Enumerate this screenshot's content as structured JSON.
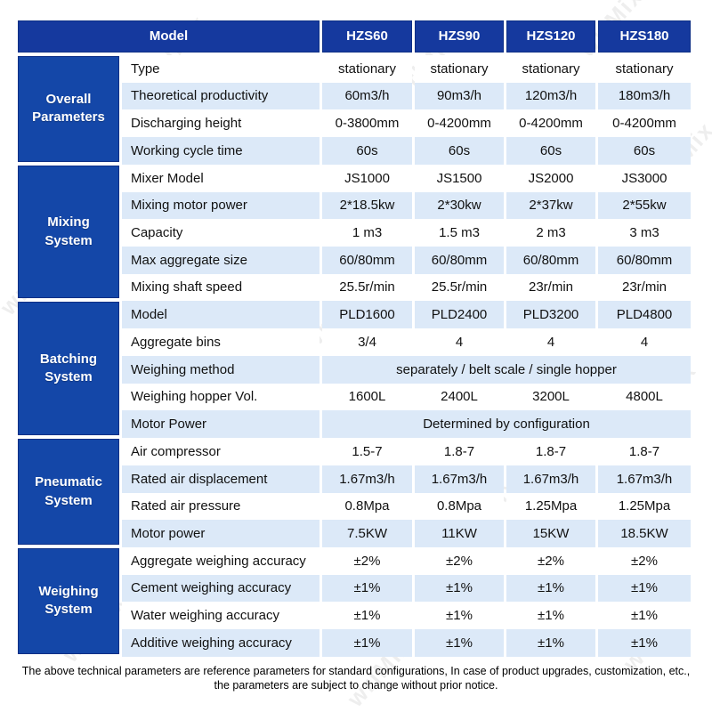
{
  "header": {
    "model_label": "Model",
    "columns": [
      "HZS60",
      "HZS90",
      "HZS120",
      "HZS180"
    ]
  },
  "sections": [
    {
      "label": "Overall\nParameters",
      "rows": [
        {
          "param": "Type",
          "values": [
            "stationary",
            "stationary",
            "stationary",
            "stationary"
          ]
        },
        {
          "param": "Theoretical productivity",
          "values": [
            "60m3/h",
            "90m3/h",
            "120m3/h",
            "180m3/h"
          ]
        },
        {
          "param": "Discharging height",
          "values": [
            "0-3800mm",
            "0-4200mm",
            "0-4200mm",
            "0-4200mm"
          ]
        },
        {
          "param": "Working cycle time",
          "values": [
            "60s",
            "60s",
            "60s",
            "60s"
          ]
        }
      ]
    },
    {
      "label": "Mixing\nSystem",
      "rows": [
        {
          "param": "Mixer Model",
          "values": [
            "JS1000",
            "JS1500",
            "JS2000",
            "JS3000"
          ]
        },
        {
          "param": "Mixing motor power",
          "values": [
            "2*18.5kw",
            "2*30kw",
            "2*37kw",
            "2*55kw"
          ]
        },
        {
          "param": "Capacity",
          "values": [
            "1 m3",
            "1.5 m3",
            "2 m3",
            "3 m3"
          ]
        },
        {
          "param": "Max aggregate size",
          "values": [
            "60/80mm",
            "60/80mm",
            "60/80mm",
            "60/80mm"
          ]
        },
        {
          "param": "Mixing shaft speed",
          "values": [
            "25.5r/min",
            "25.5r/min",
            "23r/min",
            "23r/min"
          ]
        }
      ]
    },
    {
      "label": "Batching\nSystem",
      "rows": [
        {
          "param": "Model",
          "values": [
            "PLD1600",
            "PLD2400",
            "PLD3200",
            "PLD4800"
          ]
        },
        {
          "param": "Aggregate bins",
          "values": [
            "3/4",
            "4",
            "4",
            "4"
          ]
        },
        {
          "param": "Weighing method",
          "span_value": "separately  / belt scale / single hopper"
        },
        {
          "param": "Weighing hopper Vol.",
          "values": [
            "1600L",
            "2400L",
            "3200L",
            "4800L"
          ]
        },
        {
          "param": "Motor Power",
          "span_value": "Determined by configuration"
        }
      ]
    },
    {
      "label": "Pneumatic\nSystem",
      "rows": [
        {
          "param": "Air compressor",
          "values": [
            "1.5-7",
            "1.8-7",
            "1.8-7",
            "1.8-7"
          ]
        },
        {
          "param": "Rated air displacement",
          "values": [
            "1.67m3/h",
            "1.67m3/h",
            "1.67m3/h",
            "1.67m3/h"
          ]
        },
        {
          "param": "Rated air pressure",
          "values": [
            "0.8Mpa",
            "0.8Mpa",
            "1.25Mpa",
            "1.25Mpa"
          ]
        },
        {
          "param": "Motor power",
          "values": [
            "7.5KW",
            "11KW",
            "15KW",
            "18.5KW"
          ]
        }
      ]
    },
    {
      "label": "Weighing\nSystem",
      "rows": [
        {
          "param": "Aggregate weighing accuracy",
          "values": [
            "±2%",
            "±2%",
            "±2%",
            "±2%"
          ]
        },
        {
          "param": "Cement weighing accuracy",
          "values": [
            "±1%",
            "±1%",
            "±1%",
            "±1%"
          ]
        },
        {
          "param": "Water weighing accuracy",
          "values": [
            "±1%",
            "±1%",
            "±1%",
            "±1%"
          ]
        },
        {
          "param": "Additive weighing accuracy",
          "values": [
            "±1%",
            "±1%",
            "±1%",
            "±1%"
          ]
        }
      ]
    }
  ],
  "footer": {
    "line1": "The above technical parameters are reference parameters for standard configurations, In case of  product upgrades, customization, etc.,",
    "line2": "the parameters are subject to change without prior notice."
  },
  "watermark": {
    "text": "wrlMix"
  },
  "colors": {
    "header_blue": "#15399e",
    "section_blue": "#1447a8",
    "row_alt": "#dce9f8",
    "border_navy": "#0d2f85"
  }
}
